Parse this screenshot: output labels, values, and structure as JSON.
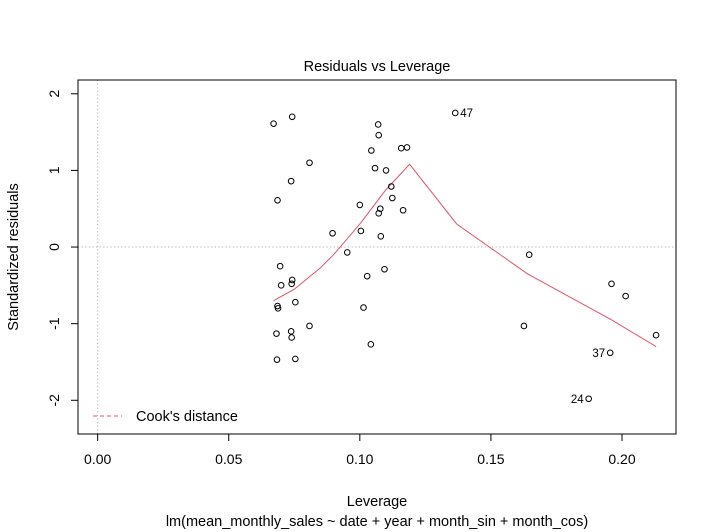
{
  "chart_data": {
    "type": "scatter",
    "title": "Residuals vs Leverage",
    "xlabel": "Leverage",
    "subtitle": "lm(mean_monthly_sales ~ date + year + month_sin + month_cos)",
    "ylabel": "Standardized residuals",
    "xlim": [
      -0.0075,
      0.2206
    ],
    "ylim": [
      -2.44,
      2.18
    ],
    "x_ticks": [
      0.0,
      0.05,
      0.1,
      0.15,
      0.2
    ],
    "x_tick_labels": [
      "0.00",
      "0.05",
      "0.10",
      "0.15",
      "0.20"
    ],
    "y_ticks": [
      -2,
      -1,
      0,
      1,
      2
    ],
    "y_tick_labels": [
      "-2",
      "-1",
      "0",
      "1",
      "2"
    ],
    "grid": false,
    "reference_lines": {
      "vertical_x": 0,
      "horizontal_y": 0
    },
    "colors": {
      "smooth": "#DF536B",
      "points": "#000000",
      "reference": "#b0b0b0"
    },
    "legend": {
      "position": "bottom-left",
      "entries": [
        {
          "label": "Cook's distance",
          "style": "dashed",
          "color": "#DF536B"
        }
      ]
    },
    "series": [
      {
        "type": "scatter",
        "points": [
          [
            0.0671,
            1.61
          ],
          [
            0.0742,
            1.7
          ],
          [
            0.0686,
            0.61
          ],
          [
            0.0738,
            0.86
          ],
          [
            0.0808,
            1.1
          ],
          [
            0.0696,
            -0.25
          ],
          [
            0.07,
            -0.5
          ],
          [
            0.0742,
            -0.43
          ],
          [
            0.074,
            -0.48
          ],
          [
            0.0686,
            -0.77
          ],
          [
            0.0688,
            -0.8
          ],
          [
            0.0754,
            -0.72
          ],
          [
            0.0682,
            -1.13
          ],
          [
            0.0738,
            -1.1
          ],
          [
            0.074,
            -1.18
          ],
          [
            0.0808,
            -1.03
          ],
          [
            0.0684,
            -1.47
          ],
          [
            0.0754,
            -1.46
          ],
          [
            0.0896,
            0.18
          ],
          [
            0.0952,
            -0.07
          ],
          [
            0.1,
            0.55
          ],
          [
            0.1004,
            0.21
          ],
          [
            0.1028,
            -0.38
          ],
          [
            0.1014,
            -0.79
          ],
          [
            0.1042,
            -1.27
          ],
          [
            0.107,
            1.6
          ],
          [
            0.1072,
            1.46
          ],
          [
            0.1044,
            1.26
          ],
          [
            0.1058,
            1.03
          ],
          [
            0.11,
            1.0
          ],
          [
            0.112,
            0.79
          ],
          [
            0.1124,
            0.64
          ],
          [
            0.1078,
            0.5
          ],
          [
            0.1072,
            0.44
          ],
          [
            0.108,
            0.14
          ],
          [
            0.1094,
            -0.29
          ],
          [
            0.1158,
            1.29
          ],
          [
            0.118,
            1.3
          ],
          [
            0.1165,
            0.48
          ],
          [
            0.1364,
            1.75
          ],
          [
            0.1646,
            -0.1
          ],
          [
            0.1626,
            -1.03
          ],
          [
            0.196,
            -0.48
          ],
          [
            0.2014,
            -0.64
          ],
          [
            0.213,
            -1.15
          ],
          [
            0.1955,
            -1.38
          ],
          [
            0.1873,
            -1.98
          ]
        ]
      },
      {
        "type": "line",
        "name": "Cook's distance",
        "points": [
          [
            0.0671,
            -0.7
          ],
          [
            0.075,
            -0.55
          ],
          [
            0.085,
            -0.27
          ],
          [
            0.09,
            -0.1
          ],
          [
            0.1,
            0.3
          ],
          [
            0.11,
            0.75
          ],
          [
            0.119,
            1.08
          ],
          [
            0.137,
            0.3
          ],
          [
            0.164,
            -0.35
          ],
          [
            0.196,
            -0.95
          ],
          [
            0.213,
            -1.3
          ]
        ]
      }
    ],
    "annotations": [
      {
        "label": "47",
        "x": 0.1364,
        "y": 1.75,
        "side": "right"
      },
      {
        "label": "37",
        "x": 0.1955,
        "y": -1.38,
        "side": "left"
      },
      {
        "label": "24",
        "x": 0.1873,
        "y": -1.98,
        "side": "left"
      }
    ]
  }
}
